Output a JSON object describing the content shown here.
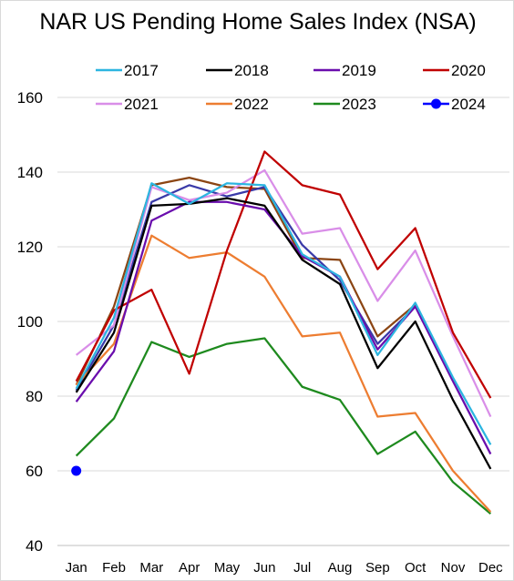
{
  "chart_data": {
    "type": "line",
    "title": "NAR US Pending Home Sales Index (NSA)",
    "xlabel": "",
    "ylabel": "",
    "categories": [
      "Jan",
      "Feb",
      "Mar",
      "Apr",
      "May",
      "Jun",
      "Jul",
      "Aug",
      "Sep",
      "Oct",
      "Nov",
      "Dec"
    ],
    "ylim": [
      40,
      160
    ],
    "yticks": [
      40,
      60,
      80,
      100,
      120,
      140,
      160
    ],
    "grid": true,
    "legend_position": "top",
    "series": [
      {
        "name": "2017",
        "color": "#2cb5e0",
        "values": [
          82,
          101,
          137,
          131.5,
          137,
          136.5,
          118,
          112,
          91,
          105,
          85,
          67
        ]
      },
      {
        "name": "2018",
        "color": "#000000",
        "values": [
          81,
          97,
          131,
          131.5,
          133,
          131,
          116.5,
          110,
          87.5,
          100,
          79,
          60.5
        ]
      },
      {
        "name": "2019",
        "color": "#6a0dad",
        "values": [
          78.5,
          92,
          127,
          132,
          132,
          130,
          117.5,
          112,
          92.5,
          104,
          84,
          64.5
        ]
      },
      {
        "name": "2020",
        "color": "#c00000",
        "values": [
          84,
          103,
          108.5,
          86,
          119,
          145.5,
          136.5,
          134,
          114,
          125,
          97,
          79.5
        ]
      },
      {
        "name": "2021",
        "color": "#d98ee8",
        "values": [
          91,
          99,
          136,
          132.5,
          134.5,
          140.5,
          123.5,
          125,
          105.5,
          119,
          96,
          74.5
        ]
      },
      {
        "name": "2022",
        "color": "#ed7d31",
        "values": [
          83,
          94,
          123,
          117,
          118.5,
          112,
          96,
          97,
          74.5,
          75.5,
          60,
          49
        ]
      },
      {
        "name": "2023",
        "color": "#1e8a1e",
        "values": [
          64,
          74,
          94.5,
          90.5,
          94,
          95.5,
          82.5,
          79,
          64.5,
          70.5,
          57,
          48.5
        ]
      },
      {
        "name": "2024",
        "color": "#0000ff",
        "values": [
          60,
          null,
          null,
          null,
          null,
          null,
          null,
          null,
          null,
          null,
          null,
          null
        ],
        "marker": "circle"
      }
    ],
    "extra_series": [
      {
        "color": "#8b4513",
        "values": [
          83,
          104,
          136.5,
          138.5,
          136,
          135.5,
          117,
          116.5,
          96,
          104.5,
          null,
          69.5
        ]
      },
      {
        "color": "#3a3aa8",
        "values": [
          81.5,
          99,
          132,
          136.5,
          133.5,
          136,
          120.5,
          111,
          94,
          104,
          null,
          69
        ]
      }
    ]
  }
}
